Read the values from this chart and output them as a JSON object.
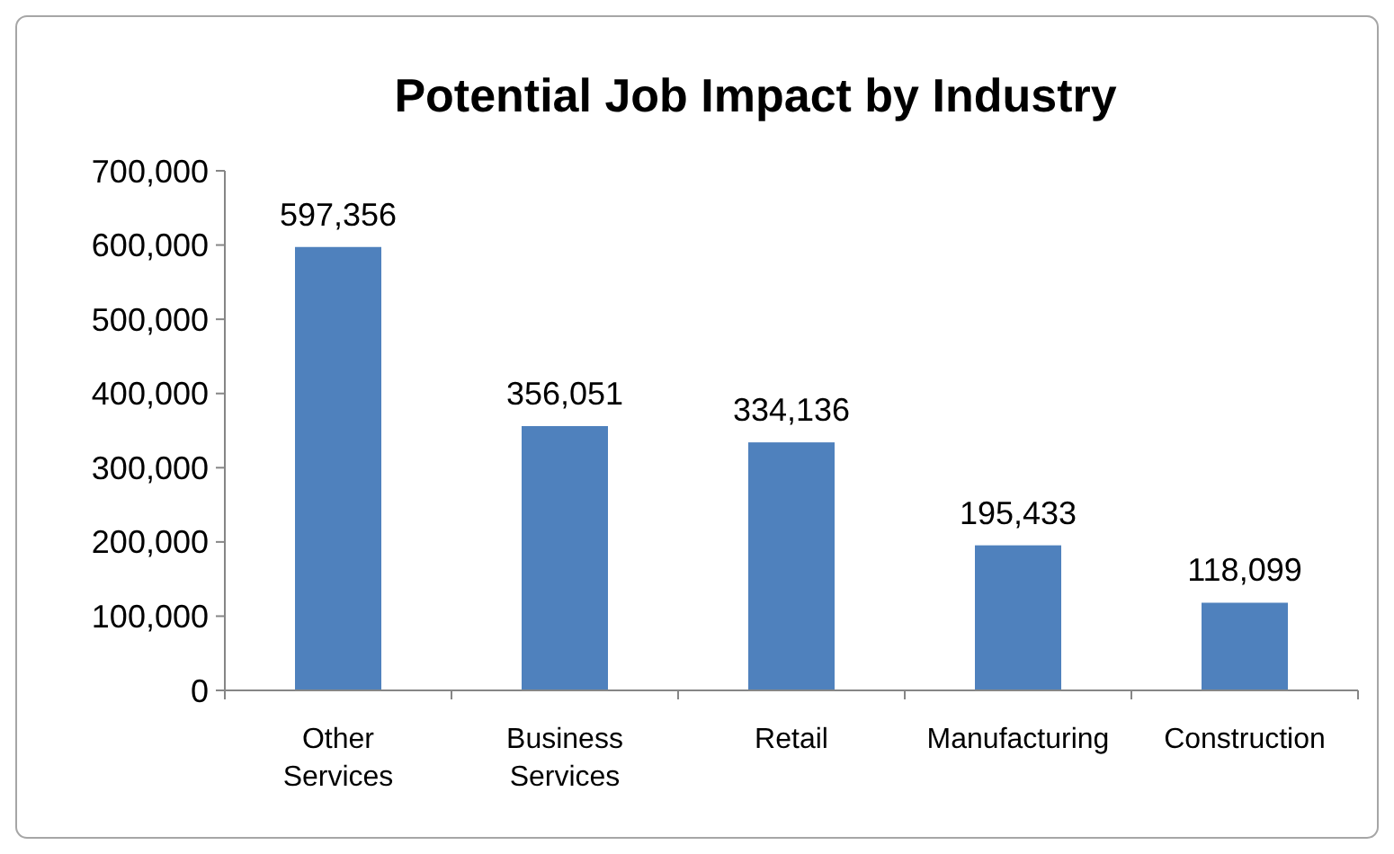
{
  "chart_data": {
    "type": "bar",
    "title": "Potential Job Impact by Industry",
    "categories": [
      "Other Services",
      "Business Services",
      "Retail",
      "Manufacturing",
      "Construction"
    ],
    "values": [
      597356,
      356051,
      334136,
      195433,
      118099
    ],
    "color": "#4f81bd",
    "ylim": [
      0,
      700000
    ],
    "yticks": [
      {
        "value": 0,
        "label": "0"
      },
      {
        "value": 100000,
        "label": "100,000"
      },
      {
        "value": 200000,
        "label": "200,000"
      },
      {
        "value": 300000,
        "label": "300,000"
      },
      {
        "value": 400000,
        "label": "400,000"
      },
      {
        "value": 500000,
        "label": "500,000"
      },
      {
        "value": 600000,
        "label": "600,000"
      },
      {
        "value": 700000,
        "label": "700,000"
      }
    ],
    "value_labels": [
      "597,356",
      "356,051",
      "334,136",
      "195,433",
      "118,099"
    ],
    "grid": false
  }
}
